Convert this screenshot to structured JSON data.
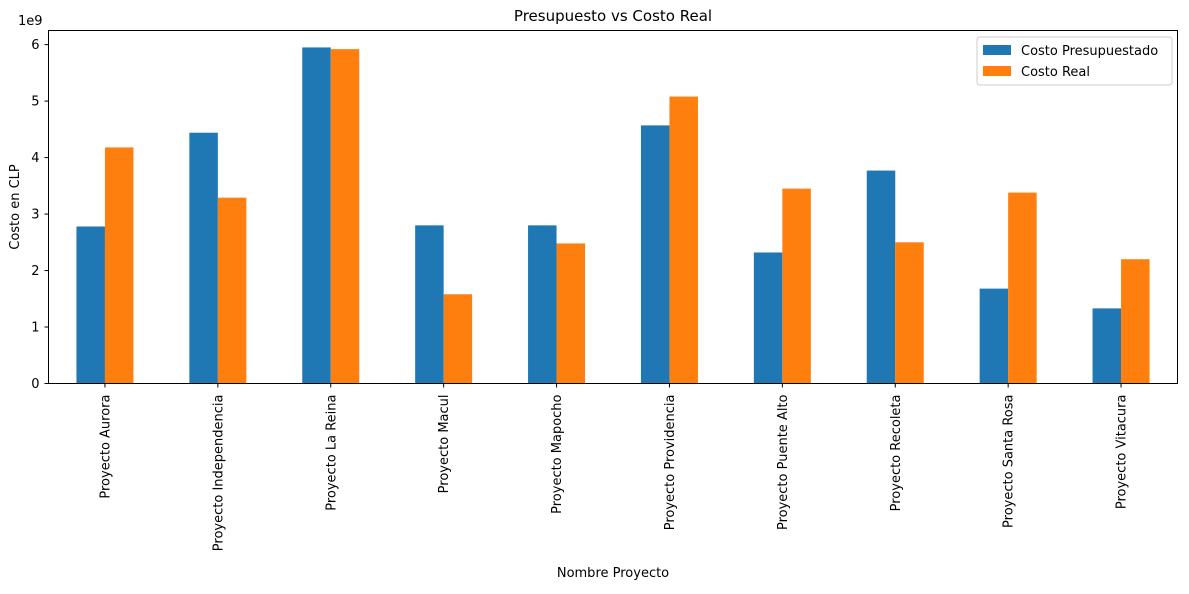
{
  "chart_data": {
    "type": "bar",
    "title": "Presupuesto vs Costo Real",
    "xlabel": "Nombre Proyecto",
    "ylabel": "Costo en CLP",
    "y_offset_label": "1e9",
    "y_scale": 1000000000,
    "ylim": [
      0,
      6.25
    ],
    "yticks": [
      0,
      1,
      2,
      3,
      4,
      5,
      6
    ],
    "grid": false,
    "legend_position": "top-right",
    "categories": [
      "Proyecto Aurora",
      "Proyecto Independencia",
      "Proyecto La Reina",
      "Proyecto Macul",
      "Proyecto Mapocho",
      "Proyecto Providencia",
      "Proyecto Puente Alto",
      "Proyecto Recoleta",
      "Proyecto Santa Rosa",
      "Proyecto Vitacura"
    ],
    "series": [
      {
        "name": "Costo Presupuestado",
        "color": "#1f77b4",
        "values": [
          2.78,
          4.44,
          5.95,
          2.8,
          2.8,
          4.57,
          2.32,
          3.77,
          1.68,
          1.33
        ]
      },
      {
        "name": "Costo Real",
        "color": "#ff7f0e",
        "values": [
          4.18,
          3.29,
          5.92,
          1.58,
          2.48,
          5.08,
          3.45,
          2.5,
          3.38,
          2.2
        ]
      }
    ]
  }
}
